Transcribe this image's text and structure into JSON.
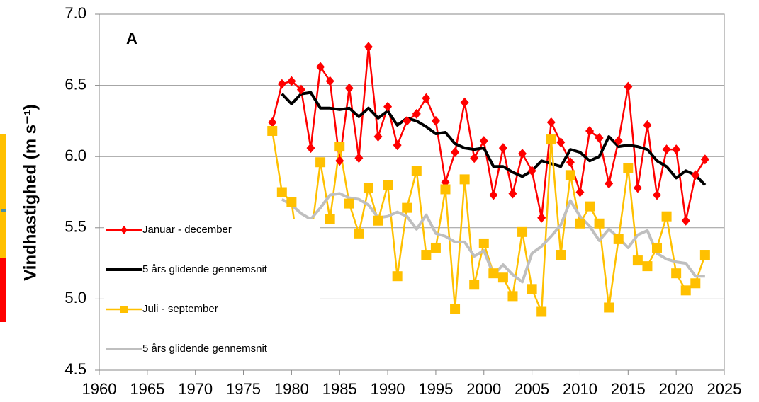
{
  "chart_data": {
    "type": "line",
    "panel_label": "A",
    "ylabel": "Vindhastighed (m s⁻¹)",
    "x": [
      1978,
      1979,
      1980,
      1981,
      1982,
      1983,
      1984,
      1985,
      1986,
      1987,
      1988,
      1989,
      1990,
      1991,
      1992,
      1993,
      1994,
      1995,
      1996,
      1997,
      1998,
      1999,
      2000,
      2001,
      2002,
      2003,
      2004,
      2005,
      2006,
      2007,
      2008,
      2009,
      2010,
      2011,
      2012,
      2013,
      2014,
      2015,
      2016,
      2017,
      2018,
      2019,
      2020,
      2021,
      2022,
      2023
    ],
    "xlim": [
      1960,
      2025
    ],
    "xticks": [
      1960,
      1965,
      1970,
      1975,
      1980,
      1985,
      1990,
      1995,
      2000,
      2005,
      2010,
      2015,
      2020,
      2025
    ],
    "ylim": [
      4.5,
      7.0
    ],
    "yticks": [
      {
        "value": 7.0,
        "label": "7.0"
      },
      6.5,
      {
        "value": 6.0,
        "label": "6.0"
      },
      5.5,
      {
        "value": 5.0,
        "label": "5.0"
      },
      4.5
    ],
    "grid": true,
    "legend": "lower left",
    "series": [
      {
        "name": "Januar - december",
        "color": "#ff0000",
        "marker": "diamond",
        "values": [
          6.24,
          6.51,
          6.53,
          6.47,
          6.06,
          6.63,
          6.53,
          5.97,
          6.48,
          5.99,
          6.77,
          6.14,
          6.35,
          6.08,
          6.25,
          6.3,
          6.41,
          6.25,
          5.82,
          6.03,
          6.38,
          5.99,
          6.11,
          5.73,
          6.06,
          5.74,
          6.02,
          5.9,
          5.57,
          6.24,
          6.1,
          5.96,
          5.75,
          6.18,
          6.13,
          5.81,
          6.11,
          6.49,
          5.78,
          6.22,
          5.73,
          6.05,
          6.05,
          5.55,
          5.87,
          5.98
        ]
      },
      {
        "name": "5 års glidende gennemsnit",
        "color": "#000000",
        "marker": "none",
        "values": [
          null,
          6.44,
          6.37,
          6.44,
          6.45,
          6.34,
          6.34,
          6.33,
          6.34,
          6.28,
          6.34,
          6.27,
          6.32,
          6.22,
          6.27,
          6.25,
          6.21,
          6.16,
          6.17,
          6.09,
          6.06,
          6.05,
          6.06,
          5.93,
          5.93,
          5.89,
          5.86,
          5.9,
          5.97,
          5.95,
          5.93,
          6.05,
          6.03,
          5.97,
          6.0,
          6.14,
          6.07,
          6.08,
          6.07,
          6.05,
          5.97,
          5.93,
          5.85,
          5.9,
          5.87,
          5.8
        ]
      },
      {
        "name": "Juli - september",
        "color": "#ffc000",
        "marker": "square",
        "values": [
          6.18,
          5.75,
          5.68,
          5.2,
          5.42,
          5.96,
          5.56,
          6.07,
          5.67,
          5.46,
          5.78,
          5.55,
          5.8,
          5.16,
          5.64,
          5.9,
          5.31,
          5.36,
          5.77,
          4.93,
          5.84,
          5.1,
          5.39,
          5.18,
          5.15,
          5.02,
          5.47,
          5.07,
          4.91,
          6.12,
          5.31,
          5.87,
          5.53,
          5.65,
          5.53,
          4.94,
          5.42,
          5.92,
          5.27,
          5.23,
          5.36,
          5.58,
          5.18,
          5.06,
          5.11,
          5.31
        ]
      },
      {
        "name": "5 års glidende gennemsnit",
        "color": "#bfbfbf",
        "marker": "none",
        "values": [
          null,
          5.7,
          5.66,
          5.6,
          5.56,
          5.64,
          5.73,
          5.74,
          5.71,
          5.7,
          5.66,
          5.57,
          5.58,
          5.61,
          5.58,
          5.49,
          5.59,
          5.46,
          5.44,
          5.4,
          5.4,
          5.3,
          5.34,
          5.17,
          5.24,
          5.17,
          5.12,
          5.32,
          5.37,
          5.44,
          5.52,
          5.69,
          5.58,
          5.51,
          5.41,
          5.49,
          5.43,
          5.36,
          5.45,
          5.48,
          5.32,
          5.28,
          5.26,
          5.25,
          5.16,
          5.16
        ]
      }
    ]
  }
}
